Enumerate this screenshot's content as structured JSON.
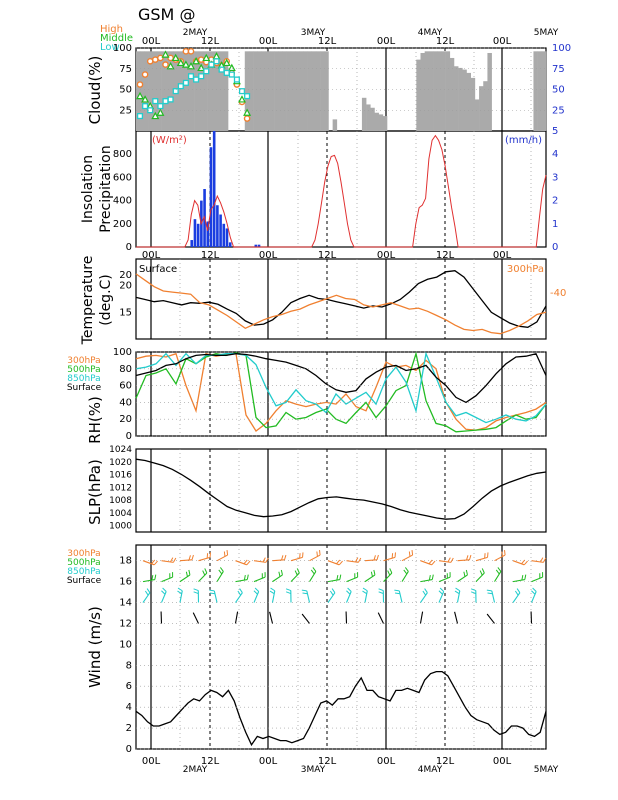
{
  "title": "GSM  @",
  "days": [
    "2MAY",
    "3MAY",
    "4MAY",
    "5MAY"
  ],
  "time_labels": [
    "00L",
    "12L"
  ],
  "chart_data": [
    {
      "type": "bar",
      "ylabel": "Cloud(%)",
      "ylim": [
        0,
        100
      ],
      "yticks": [
        25,
        50,
        75,
        100
      ],
      "series": [
        {
          "name": "High",
          "color": "#f08030",
          "marker": "circle",
          "values": [
            56,
            68,
            84,
            86,
            88,
            80,
            88,
            86,
            84,
            96,
            96,
            84,
            86,
            83,
            86,
            82,
            79,
            84,
            70,
            56,
            35,
            15,
            null,
            null,
            null,
            null,
            null,
            null,
            null,
            null,
            null,
            null,
            null,
            null,
            null,
            null,
            null,
            null,
            null,
            null,
            null,
            null,
            null,
            null,
            null,
            null,
            null,
            null,
            null,
            null,
            null,
            null,
            null,
            null,
            null,
            null,
            null,
            null,
            null,
            null,
            null,
            null,
            null,
            null,
            null,
            null,
            null,
            null,
            null,
            null,
            null,
            null,
            null,
            null,
            null,
            null,
            null,
            null,
            null,
            null,
            null,
            null,
            null,
            null,
            null,
            null,
            null,
            null,
            null,
            null,
            null,
            null,
            null,
            null,
            null,
            null
          ]
        },
        {
          "name": "Middle",
          "color": "#22bb22",
          "marker": "triangle",
          "values": [
            42,
            38,
            30,
            18,
            22,
            92,
            78,
            88,
            82,
            80,
            78,
            84,
            76,
            88,
            80,
            90,
            79,
            82,
            76,
            60,
            38,
            22
          ]
        },
        {
          "name": "Low",
          "color": "#22cccc",
          "marker": "square",
          "values": [
            18,
            30,
            25,
            36,
            30,
            36,
            38,
            48,
            54,
            58,
            66,
            62,
            66,
            72,
            80,
            84,
            74,
            70,
            68,
            62,
            48,
            42
          ]
        }
      ],
      "bar_values": [
        96,
        96,
        96,
        96,
        96,
        96,
        96,
        96,
        96,
        96,
        96,
        96,
        96,
        96,
        96,
        96,
        96,
        96,
        96,
        96,
        96,
        96,
        0,
        0,
        0,
        0,
        96,
        96,
        96,
        96,
        96,
        96,
        96,
        96,
        96,
        96,
        96,
        96,
        96,
        96,
        96,
        96,
        96,
        96,
        96,
        96,
        0,
        14,
        0,
        0,
        0,
        0,
        0,
        0,
        40,
        32,
        28,
        22,
        20,
        18,
        0,
        0,
        0,
        0,
        0,
        0,
        0,
        86,
        94,
        96,
        96,
        96,
        96,
        96,
        96,
        88,
        78,
        76,
        74,
        70,
        64,
        38,
        54,
        60,
        94,
        0,
        0,
        0,
        0,
        0,
        0,
        0,
        0,
        0,
        0,
        96,
        96,
        96
      ]
    },
    {
      "type": "bar",
      "ylabel": "Insolation Precipitation",
      "left_unit": "(W/m²)",
      "right_unit": "(mm/h)",
      "ylim_left": [
        0,
        1000
      ],
      "ylim_right": [
        0,
        5
      ],
      "insolation_values": [
        0,
        0,
        0,
        0,
        0,
        0,
        0,
        0,
        0,
        0,
        0,
        0,
        0,
        0,
        0,
        0,
        60,
        280,
        400,
        360,
        200,
        260,
        140,
        320,
        360,
        440,
        380,
        300,
        200,
        80,
        0,
        0,
        0,
        0,
        0,
        0,
        0,
        0,
        0,
        0,
        0,
        0,
        0,
        0,
        0,
        0,
        0,
        0,
        0,
        0,
        0,
        0,
        0,
        0,
        0,
        60,
        200,
        380,
        560,
        700,
        780,
        790,
        720,
        560,
        380,
        200,
        60,
        0,
        0,
        0,
        0,
        0,
        0,
        0,
        0,
        0,
        0,
        0,
        0,
        0,
        0,
        0,
        0,
        0,
        0,
        0,
        200,
        340,
        360,
        420,
        760,
        920,
        960,
        920,
        840,
        700,
        520,
        340,
        180,
        0,
        0,
        0,
        0,
        0,
        0,
        0,
        0,
        0,
        0,
        0,
        0,
        0,
        0,
        0,
        0,
        0,
        0,
        0,
        0,
        0,
        0,
        0,
        0,
        0,
        260,
        500,
        620
      ],
      "precipitation_values": [
        0,
        0,
        0,
        0,
        0,
        0,
        0,
        0,
        0,
        0,
        0,
        0,
        0,
        0,
        0,
        0,
        0,
        0.3,
        1.2,
        1.0,
        2.0,
        2.5,
        1.1,
        4.3,
        5.0,
        1.8,
        1.4,
        1.0,
        0.8,
        0.2,
        0,
        0,
        0,
        0,
        0,
        0,
        0,
        0.1,
        0.1,
        0,
        0,
        0,
        0,
        0,
        0,
        0,
        0,
        0,
        0,
        0,
        0,
        0,
        0,
        0,
        0,
        0,
        0,
        0,
        0,
        0,
        0,
        0,
        0,
        0,
        0,
        0,
        0,
        0,
        0,
        0,
        0,
        0,
        0,
        0,
        0,
        0,
        0,
        0,
        0,
        0,
        0,
        0,
        0,
        0,
        0,
        0,
        0,
        0,
        0,
        0,
        0,
        0,
        0,
        0,
        0,
        0,
        0,
        0,
        0,
        0,
        0,
        0,
        0,
        0,
        0,
        0,
        0,
        0,
        0,
        0,
        0,
        0,
        0,
        0,
        0,
        0,
        0,
        0,
        0,
        0,
        0,
        0,
        0,
        0,
        0,
        0,
        0,
        0
      ]
    },
    {
      "type": "line",
      "ylabel": "Temperature (deg.C)",
      "ylim": [
        10,
        25
      ],
      "yticks": [
        15,
        20
      ],
      "series": [
        {
          "name": "Surface",
          "color": "#000000",
          "values": [
            17.8,
            17.4,
            17.0,
            17.2,
            16.8,
            16.4,
            16.8,
            16.7,
            16.9,
            16.5,
            15.6,
            14.8,
            13.4,
            12.6,
            12.8,
            13.6,
            15.0,
            16.8,
            17.6,
            18.2,
            17.6,
            17.4,
            17.0,
            16.6,
            16.2,
            15.8,
            16.2,
            16.0,
            16.6,
            17.4,
            18.8,
            20.4,
            21.2,
            21.6,
            22.6,
            22.8,
            21.6,
            19.4,
            17.2,
            15.0,
            14.0,
            13.0,
            12.4,
            12.2,
            13.2,
            16.2
          ]
        },
        {
          "name": "300hPa",
          "color": "#f08030",
          "values": [
            22.2,
            21.0,
            19.8,
            19.0,
            18.8,
            18.6,
            18.4,
            16.8,
            16.4,
            15.4,
            14.4,
            13.2,
            12.0,
            12.8,
            13.6,
            14.2,
            14.6,
            15.2,
            15.6,
            16.4,
            17.0,
            17.6,
            18.2,
            17.6,
            17.4,
            16.4,
            16.0,
            16.4,
            16.8,
            16.2,
            15.6,
            15.8,
            15.2,
            14.4,
            13.6,
            12.6,
            11.8,
            11.6,
            11.8,
            11.2,
            11.0,
            11.6,
            12.4,
            13.4,
            14.6,
            15.0
          ]
        }
      ],
      "right_tick": "-40"
    },
    {
      "type": "line",
      "ylabel": "RH(%)",
      "ylim": [
        0,
        100
      ],
      "yticks": [
        0,
        20,
        40,
        60,
        80,
        100
      ],
      "series": [
        {
          "name": "300hPa",
          "color": "#f08030",
          "values": [
            92,
            95,
            96,
            94,
            98,
            60,
            30,
            98,
            95,
            97,
            98,
            25,
            6,
            15,
            30,
            42,
            38,
            35,
            38,
            40,
            38,
            50,
            35,
            30,
            58,
            88,
            82,
            84,
            78,
            90,
            80,
            40,
            20,
            8,
            7,
            10,
            18,
            22,
            25,
            28,
            32,
            40
          ]
        },
        {
          "name": "500hPa",
          "color": "#22bb22",
          "values": [
            45,
            72,
            75,
            80,
            62,
            92,
            86,
            94,
            98,
            96,
            99,
            96,
            22,
            10,
            12,
            28,
            20,
            22,
            28,
            32,
            20,
            15,
            28,
            40,
            22,
            36,
            54,
            60,
            98,
            42,
            15,
            12,
            5,
            6,
            7,
            8,
            10,
            18,
            25,
            20,
            22,
            38
          ]
        },
        {
          "name": "850hPa",
          "color": "#22cccc",
          "values": [
            80,
            82,
            86,
            98,
            84,
            98,
            86,
            96,
            96,
            98,
            98,
            96,
            85,
            58,
            36,
            40,
            55,
            42,
            38,
            28,
            50,
            38,
            45,
            52,
            38,
            68,
            82,
            64,
            30,
            98,
            70,
            40,
            24,
            28,
            22,
            16,
            20,
            25,
            20,
            18,
            24,
            38
          ]
        },
        {
          "name": "Surface",
          "color": "#000000",
          "values": [
            72,
            75,
            78,
            84,
            86,
            92,
            96,
            97,
            96,
            96,
            98,
            97,
            95,
            92,
            90,
            88,
            84,
            80,
            72,
            62,
            55,
            52,
            54,
            68,
            76,
            82,
            84,
            78,
            80,
            84,
            70,
            60,
            46,
            40,
            48,
            60,
            74,
            86,
            94,
            95,
            98,
            72
          ]
        }
      ]
    },
    {
      "type": "line",
      "ylabel": "SLP(hPa)",
      "ylim": [
        998,
        1024
      ],
      "yticks": [
        1000,
        1004,
        1008,
        1012,
        1016,
        1020,
        1024
      ],
      "series": [
        {
          "name": "SLP",
          "color": "#000000",
          "values": [
            1020.8,
            1020.4,
            1019.6,
            1018.8,
            1017.6,
            1016.0,
            1014.2,
            1012.2,
            1010.0,
            1008.0,
            1006.0,
            1004.8,
            1004.0,
            1003.2,
            1002.8,
            1003.0,
            1003.4,
            1004.4,
            1005.8,
            1007.2,
            1008.4,
            1008.8,
            1009.0,
            1008.6,
            1008.2,
            1008.0,
            1007.4,
            1006.8,
            1006.0,
            1005.0,
            1004.2,
            1003.6,
            1003.0,
            1002.4,
            1002.0,
            1002.2,
            1003.6,
            1006.0,
            1008.6,
            1010.8,
            1012.4,
            1013.6,
            1014.6,
            1015.6,
            1016.4,
            1016.8
          ]
        }
      ]
    },
    {
      "type": "line",
      "ylabel": "Wind (m/s)",
      "ylim": [
        0,
        19.5
      ],
      "yticks": [
        0,
        2,
        4,
        6,
        8,
        10,
        12,
        14,
        16,
        18
      ],
      "legend": [
        "300hPa",
        "500hPa",
        "850hPa",
        "Surface"
      ],
      "level_heights": {
        "300hPa": 18,
        "500hPa": 16,
        "850hPa": 14,
        "Surface": 12
      },
      "series": [
        {
          "name": "Surface",
          "color": "#000000",
          "values": [
            3.6,
            3.2,
            2.6,
            2.2,
            2.2,
            2.4,
            2.6,
            3.2,
            3.8,
            4.4,
            4.8,
            4.6,
            5.2,
            5.6,
            5.4,
            5.0,
            5.6,
            4.6,
            3.0,
            1.6,
            0.4,
            1.2,
            1.0,
            1.2,
            1.0,
            0.8,
            0.8,
            0.6,
            0.8,
            1.0,
            2.0,
            3.2,
            4.4,
            4.6,
            4.2,
            4.8,
            4.8,
            5.0,
            6.0,
            6.8,
            5.6,
            5.6,
            5.0,
            4.8,
            4.6,
            5.6,
            5.6,
            5.8,
            5.6,
            5.4,
            6.6,
            7.2,
            7.4,
            7.4,
            7.0,
            6.0,
            5.0,
            4.0,
            3.2,
            2.8,
            2.6,
            2.4,
            1.8,
            1.4,
            1.6,
            2.2,
            2.2,
            2.0,
            1.4,
            1.2,
            1.6,
            3.6
          ]
        }
      ]
    }
  ]
}
